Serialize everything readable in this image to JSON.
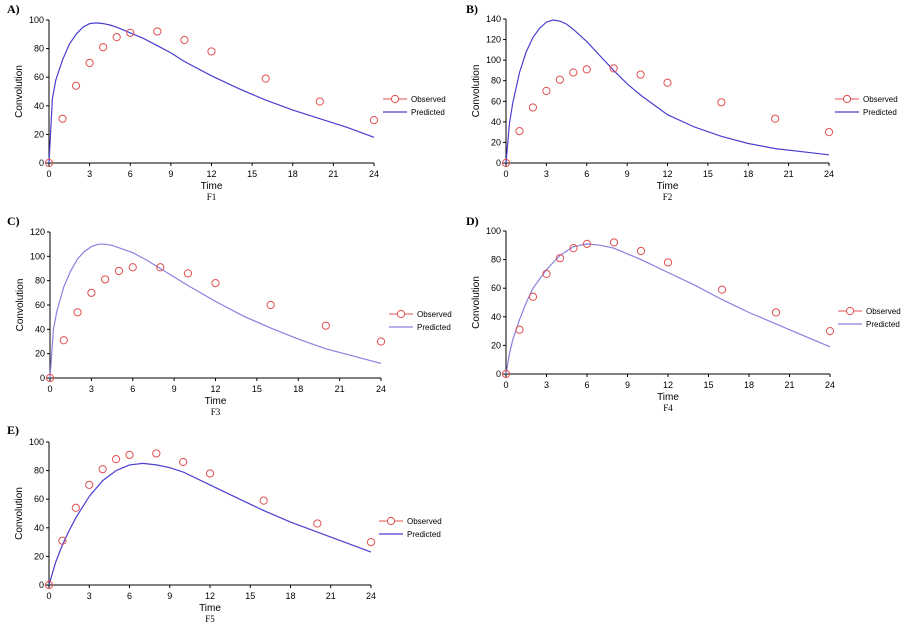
{
  "chart_data": [
    {
      "type": "scatter",
      "panel_letter": "A)",
      "caption": "F1",
      "xlabel": "Time",
      "ylabel": "Convolution",
      "xlim": [
        0,
        24
      ],
      "ylim": [
        0,
        100
      ],
      "xticks": [
        0,
        3,
        6,
        9,
        12,
        15,
        18,
        21,
        24
      ],
      "yticks": [
        0,
        20,
        40,
        60,
        80,
        100
      ],
      "legend": {
        "observed": "Observed",
        "predicted": "Predicted",
        "placement": "right"
      },
      "colors": {
        "observed": "#e05050",
        "predicted": "#4a3fd0"
      },
      "observed": {
        "x": [
          0,
          1,
          2,
          3,
          4,
          5,
          6,
          8,
          10,
          12,
          16,
          20,
          24
        ],
        "y": [
          0,
          31,
          54,
          70,
          81,
          88,
          91,
          92,
          86,
          78,
          59,
          43,
          30
        ]
      },
      "predicted": {
        "x": [
          0,
          0.25,
          0.5,
          1,
          1.5,
          2,
          2.5,
          3,
          3.5,
          4,
          4.5,
          5,
          6,
          7,
          8,
          9,
          10,
          12,
          14,
          16,
          18,
          20,
          22,
          24
        ],
        "y": [
          0,
          45,
          58,
          72,
          83,
          90,
          95,
          97.5,
          98,
          97.5,
          96.5,
          95,
          91,
          87,
          82,
          77,
          71,
          61,
          52,
          44,
          37,
          31,
          25,
          18
        ]
      }
    },
    {
      "type": "scatter",
      "panel_letter": "B)",
      "caption": "F2",
      "xlabel": "Time",
      "ylabel": "Convolution",
      "xlim": [
        0,
        24
      ],
      "ylim": [
        0,
        140
      ],
      "xticks": [
        0,
        3,
        6,
        9,
        12,
        15,
        18,
        21,
        24
      ],
      "yticks": [
        0,
        20,
        40,
        60,
        80,
        100,
        120,
        140
      ],
      "legend": {
        "observed": "Observed",
        "predicted": "Predicted",
        "placement": "right"
      },
      "colors": {
        "observed": "#e05050",
        "predicted": "#4a3fd0"
      },
      "observed": {
        "x": [
          0,
          1,
          2,
          3,
          4,
          5,
          6,
          8,
          10,
          12,
          16,
          20,
          24
        ],
        "y": [
          0,
          31,
          54,
          70,
          81,
          88,
          91,
          92,
          86,
          78,
          59,
          43,
          30
        ]
      },
      "predicted": {
        "x": [
          0,
          0.25,
          0.5,
          1,
          1.5,
          2,
          2.5,
          3,
          3.5,
          4,
          4.5,
          5,
          6,
          7,
          8,
          9,
          10,
          12,
          14,
          16,
          18,
          20,
          22,
          24
        ],
        "y": [
          0,
          38,
          58,
          88,
          108,
          122,
          131,
          137,
          139,
          138,
          135,
          130,
          118,
          104,
          90,
          77,
          66,
          47,
          35,
          26,
          19,
          14,
          11,
          8
        ]
      }
    },
    {
      "type": "scatter",
      "panel_letter": "C)",
      "caption": "F3",
      "xlabel": "Time",
      "ylabel": "Convolution",
      "xlim": [
        0,
        24
      ],
      "ylim": [
        0,
        120
      ],
      "xticks": [
        0,
        3,
        6,
        9,
        12,
        15,
        18,
        21,
        24
      ],
      "yticks": [
        0,
        20,
        40,
        60,
        80,
        100,
        120
      ],
      "legend": {
        "observed": "Observed",
        "predicted": "Predicted",
        "placement": "right"
      },
      "colors": {
        "observed": "#e05050",
        "predicted": "#8a80e0"
      },
      "observed": {
        "x": [
          0,
          1,
          2,
          3,
          4,
          5,
          6,
          8,
          10,
          12,
          16,
          20,
          24
        ],
        "y": [
          0,
          31,
          54,
          70,
          81,
          88,
          91,
          91,
          86,
          78,
          60,
          43,
          30
        ]
      },
      "predicted": {
        "x": [
          0,
          0.25,
          0.5,
          1,
          1.5,
          2,
          2.5,
          3,
          3.5,
          4,
          4.5,
          5,
          6,
          7,
          8,
          9,
          10,
          12,
          14,
          16,
          18,
          20,
          22,
          24
        ],
        "y": [
          0,
          40,
          55,
          75,
          88,
          98,
          104,
          108,
          110,
          110,
          109,
          107,
          103,
          97,
          90,
          83,
          76,
          63,
          51,
          41,
          32,
          24,
          18,
          12
        ]
      }
    },
    {
      "type": "scatter",
      "panel_letter": "D)",
      "caption": "F4",
      "xlabel": "Time",
      "ylabel": "Convolution",
      "xlim": [
        0,
        24
      ],
      "ylim": [
        0,
        100
      ],
      "xticks": [
        0,
        3,
        6,
        9,
        12,
        15,
        18,
        21,
        24
      ],
      "yticks": [
        0,
        20,
        40,
        60,
        80,
        100
      ],
      "legend": {
        "observed": "Observed",
        "predicted": "Predicted",
        "placement": "right"
      },
      "colors": {
        "observed": "#e05050",
        "predicted": "#8a80e0"
      },
      "observed": {
        "x": [
          0,
          1,
          2,
          3,
          4,
          5,
          6,
          8,
          10,
          12,
          16,
          20,
          24
        ],
        "y": [
          0,
          31,
          54,
          70,
          81,
          88,
          91,
          92,
          86,
          78,
          59,
          43,
          30
        ]
      },
      "predicted": {
        "x": [
          0,
          0.25,
          0.5,
          1,
          1.5,
          2,
          3,
          4,
          5,
          6,
          7,
          8,
          9,
          10,
          12,
          14,
          16,
          18,
          20,
          22,
          24
        ],
        "y": [
          0,
          14,
          24,
          38,
          50,
          60,
          73,
          83,
          89,
          91,
          90,
          88,
          84,
          80,
          71,
          62,
          52,
          43,
          35,
          27,
          19
        ]
      }
    },
    {
      "type": "scatter",
      "panel_letter": "E)",
      "caption": "F5",
      "xlabel": "Time",
      "ylabel": "Convolution",
      "xlim": [
        0,
        24
      ],
      "ylim": [
        0,
        100
      ],
      "xticks": [
        0,
        3,
        6,
        9,
        12,
        15,
        18,
        21,
        24
      ],
      "yticks": [
        0,
        20,
        40,
        60,
        80,
        100
      ],
      "legend": {
        "observed": "Observed",
        "predicted": "Predicted",
        "placement": "right"
      },
      "colors": {
        "observed": "#e05050",
        "predicted": "#4a3fd0"
      },
      "observed": {
        "x": [
          0,
          1,
          2,
          3,
          4,
          5,
          6,
          8,
          10,
          12,
          16,
          20,
          24
        ],
        "y": [
          0,
          31,
          54,
          70,
          81,
          88,
          91,
          92,
          86,
          78,
          59,
          43,
          30
        ]
      },
      "predicted": {
        "x": [
          0,
          0.5,
          1,
          1.5,
          2,
          3,
          4,
          5,
          6,
          7,
          8,
          9,
          10,
          12,
          14,
          16,
          18,
          20,
          22,
          24
        ],
        "y": [
          0,
          16,
          28,
          38,
          47,
          62,
          73,
          80,
          84,
          85,
          84,
          82,
          79,
          70,
          61,
          52,
          44,
          37,
          30,
          23
        ]
      }
    }
  ]
}
